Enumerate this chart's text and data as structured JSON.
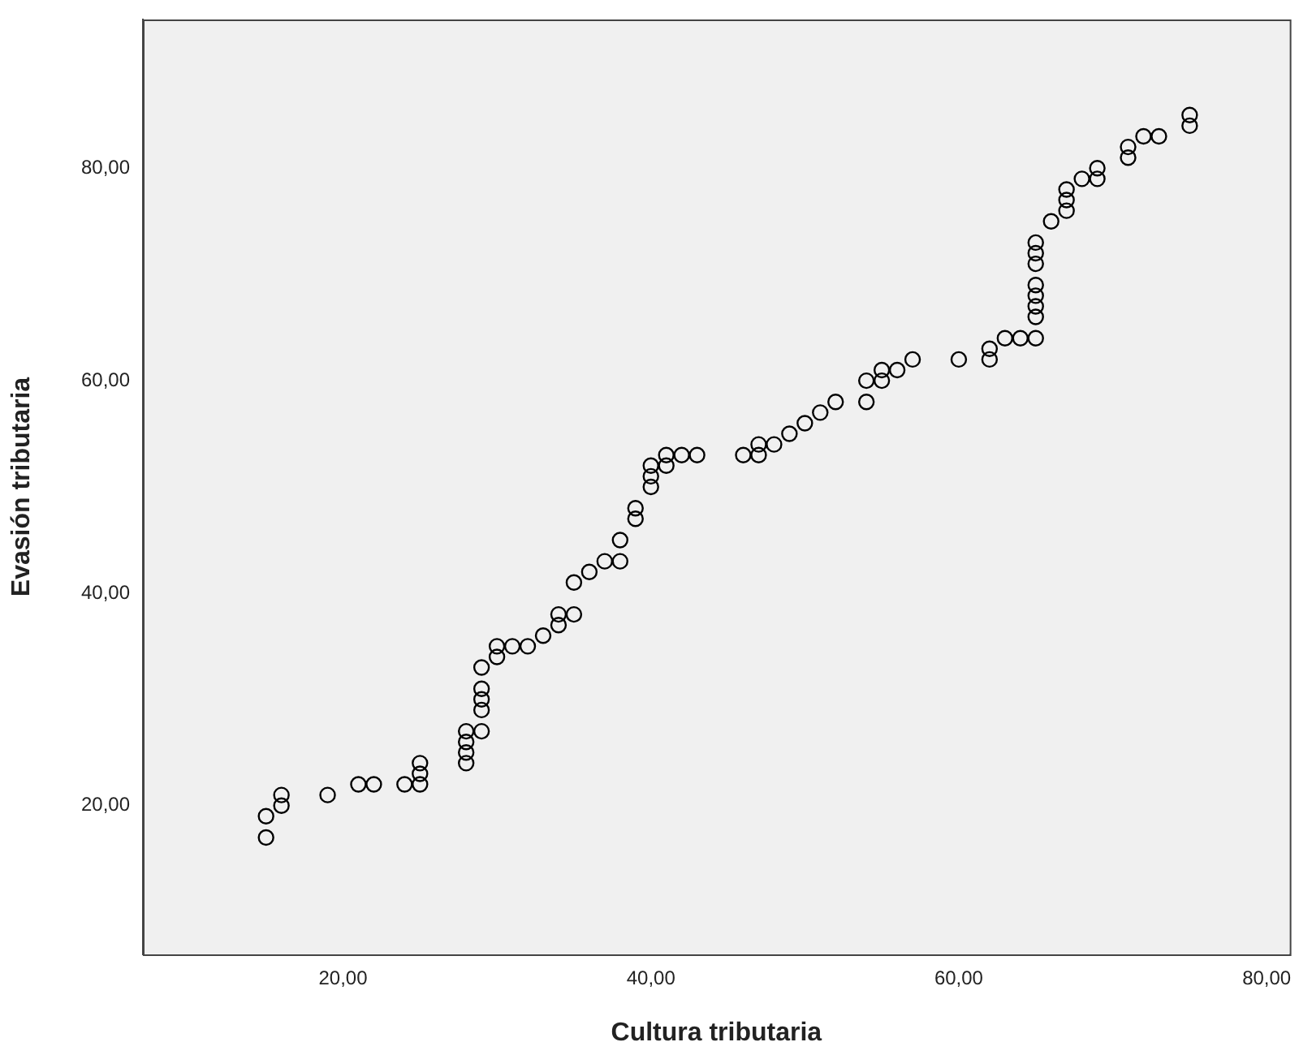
{
  "chart_data": {
    "type": "scatter",
    "xlabel": "Cultura tributaria",
    "ylabel": "Evasión tributaria",
    "xlim": [
      7,
      81.5
    ],
    "ylim": [
      6,
      94
    ],
    "xticks": [
      {
        "value": 20,
        "label": "20,00"
      },
      {
        "value": 40,
        "label": "40,00"
      },
      {
        "value": 60,
        "label": "60,00"
      },
      {
        "value": 80,
        "label": "80,00"
      }
    ],
    "yticks": [
      {
        "value": 20,
        "label": "20,00"
      },
      {
        "value": 40,
        "label": "40,00"
      },
      {
        "value": 60,
        "label": "60,00"
      },
      {
        "value": 80,
        "label": "80,00"
      }
    ],
    "grid": false,
    "legend": false,
    "marker": "circle",
    "series": [
      {
        "color": "#000000",
        "x": [
          15,
          15,
          16,
          16,
          19,
          21,
          22,
          24,
          25,
          25,
          25,
          28,
          28,
          28,
          28,
          29,
          29,
          29,
          29,
          29,
          30,
          30,
          31,
          32,
          33,
          34,
          34,
          35,
          35,
          36,
          37,
          38,
          38,
          39,
          39,
          40,
          40,
          40,
          41,
          41,
          42,
          43,
          46,
          47,
          47,
          48,
          49,
          50,
          51,
          52,
          54,
          54,
          55,
          55,
          56,
          57,
          60,
          62,
          62,
          63,
          64,
          65,
          65,
          65,
          65,
          65,
          65,
          65,
          65,
          66,
          67,
          67,
          67,
          68,
          69,
          69,
          71,
          71,
          72,
          73,
          75,
          75
        ],
        "values": [
          17,
          19,
          20,
          21,
          21,
          22,
          22,
          22,
          22,
          23,
          24,
          24,
          25,
          26,
          27,
          27,
          29,
          30,
          31,
          33,
          34,
          35,
          35,
          35,
          36,
          37,
          38,
          38,
          41,
          42,
          43,
          43,
          45,
          47,
          48,
          50,
          51,
          52,
          52,
          53,
          53,
          53,
          53,
          53,
          54,
          54,
          55,
          56,
          57,
          58,
          58,
          60,
          60,
          61,
          61,
          62,
          62,
          62,
          63,
          64,
          64,
          64,
          66,
          67,
          68,
          69,
          71,
          72,
          73,
          75,
          76,
          77,
          78,
          79,
          79,
          80,
          81,
          82,
          83,
          83,
          84,
          85
        ]
      }
    ]
  }
}
